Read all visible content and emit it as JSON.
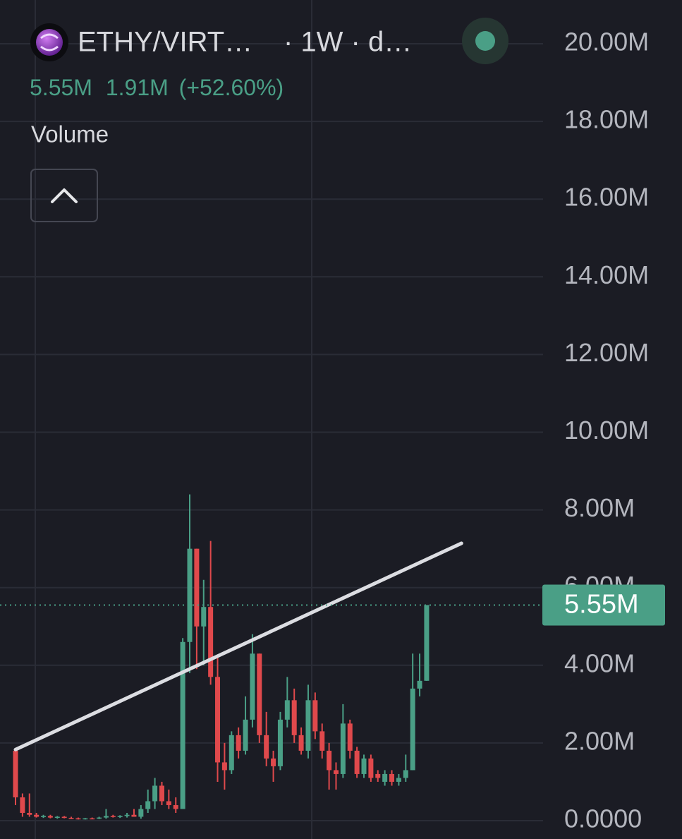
{
  "chart_data": {
    "type": "candlestick",
    "symbol": "ETHY/VIRT…",
    "interval": "· 1W · d…",
    "last": {
      "value": 5.55,
      "label": "5.55M"
    },
    "change": {
      "value": 1.91,
      "label": "1.91M"
    },
    "change_pct": {
      "value": 52.6,
      "label": "(+52.60%)"
    },
    "indicator": "Volume",
    "up_color": "#4a9f86",
    "down_color": "#e0494c",
    "grid": true,
    "ylim": [
      0,
      20
    ],
    "yticks": [
      {
        "value": 0,
        "label": "0.0000"
      },
      {
        "value": 2,
        "label": "2.00M"
      },
      {
        "value": 4,
        "label": "4.00M"
      },
      {
        "value": 6,
        "label": "6.00M"
      },
      {
        "value": 8,
        "label": "8.00M"
      },
      {
        "value": 10,
        "label": "10.00M"
      },
      {
        "value": 12,
        "label": "12.00M"
      },
      {
        "value": 14,
        "label": "14.00M"
      },
      {
        "value": 16,
        "label": "16.00M"
      },
      {
        "value": 18,
        "label": "18.00M"
      },
      {
        "value": 20,
        "label": "20.00M"
      }
    ],
    "open": [
      1.8,
      0.6,
      0.2,
      0.15,
      0.1,
      0.12,
      0.08,
      0.1,
      0.07,
      0.06,
      0.05,
      0.06,
      0.05,
      0.08,
      0.12,
      0.1,
      0.12,
      0.15,
      0.1,
      0.3,
      0.5,
      0.9,
      0.5,
      0.4,
      0.3,
      4.6,
      7.0,
      5.0,
      5.5,
      3.7,
      1.5,
      1.3,
      2.2,
      1.8,
      2.6,
      4.3,
      2.2,
      1.6,
      1.4,
      2.6,
      3.1,
      2.2,
      1.8,
      3.1,
      2.3,
      1.8,
      1.3,
      1.2,
      2.5,
      1.8,
      1.2,
      1.6,
      1.2,
      1.0,
      1.2,
      1.0,
      1.1,
      1.3,
      3.4,
      3.6
    ],
    "high": [
      1.85,
      0.7,
      0.7,
      0.2,
      0.15,
      0.15,
      0.12,
      0.12,
      0.1,
      0.08,
      0.07,
      0.08,
      0.1,
      0.3,
      0.15,
      0.14,
      0.2,
      0.3,
      0.4,
      0.8,
      1.1,
      1.0,
      0.8,
      0.6,
      4.7,
      8.4,
      7.0,
      6.2,
      7.2,
      4.2,
      2.0,
      2.3,
      2.4,
      3.2,
      4.8,
      4.3,
      2.8,
      1.8,
      2.8,
      3.7,
      3.4,
      2.4,
      3.5,
      3.3,
      2.5,
      2.0,
      1.5,
      3.0,
      2.6,
      1.9,
      1.7,
      1.7,
      1.3,
      1.3,
      1.3,
      1.2,
      1.7,
      4.3,
      4.3,
      5.55
    ],
    "low": [
      0.4,
      0.1,
      0.1,
      0.08,
      0.07,
      0.06,
      0.05,
      0.06,
      0.04,
      0.03,
      0.03,
      0.04,
      0.04,
      0.05,
      0.08,
      0.07,
      0.08,
      0.1,
      0.05,
      0.2,
      0.3,
      0.4,
      0.3,
      0.2,
      0.3,
      3.8,
      3.9,
      4.0,
      3.5,
      1.0,
      0.8,
      1.2,
      1.6,
      1.7,
      2.4,
      2.0,
      1.4,
      1.0,
      1.3,
      2.4,
      2.0,
      1.7,
      1.6,
      2.1,
      1.6,
      0.8,
      0.8,
      1.1,
      1.6,
      1.1,
      1.1,
      1.0,
      1.0,
      0.9,
      0.9,
      0.9,
      1.0,
      1.3,
      3.2,
      3.6
    ],
    "close": [
      0.6,
      0.2,
      0.15,
      0.1,
      0.12,
      0.08,
      0.1,
      0.07,
      0.06,
      0.05,
      0.06,
      0.05,
      0.08,
      0.12,
      0.1,
      0.12,
      0.15,
      0.1,
      0.3,
      0.5,
      0.9,
      0.5,
      0.4,
      0.3,
      4.6,
      7.0,
      5.0,
      5.5,
      3.7,
      1.5,
      1.3,
      2.2,
      1.8,
      2.6,
      4.3,
      2.2,
      1.6,
      1.4,
      2.6,
      3.1,
      2.2,
      1.8,
      3.1,
      2.3,
      1.8,
      1.3,
      1.2,
      2.5,
      1.8,
      1.2,
      1.6,
      1.1,
      1.1,
      1.2,
      1.0,
      1.1,
      1.3,
      3.4,
      3.6,
      5.55
    ],
    "trendline": {
      "x": [
        0,
        64
      ],
      "y": [
        1.83,
        7.14
      ],
      "color": "#dcdde2"
    }
  }
}
